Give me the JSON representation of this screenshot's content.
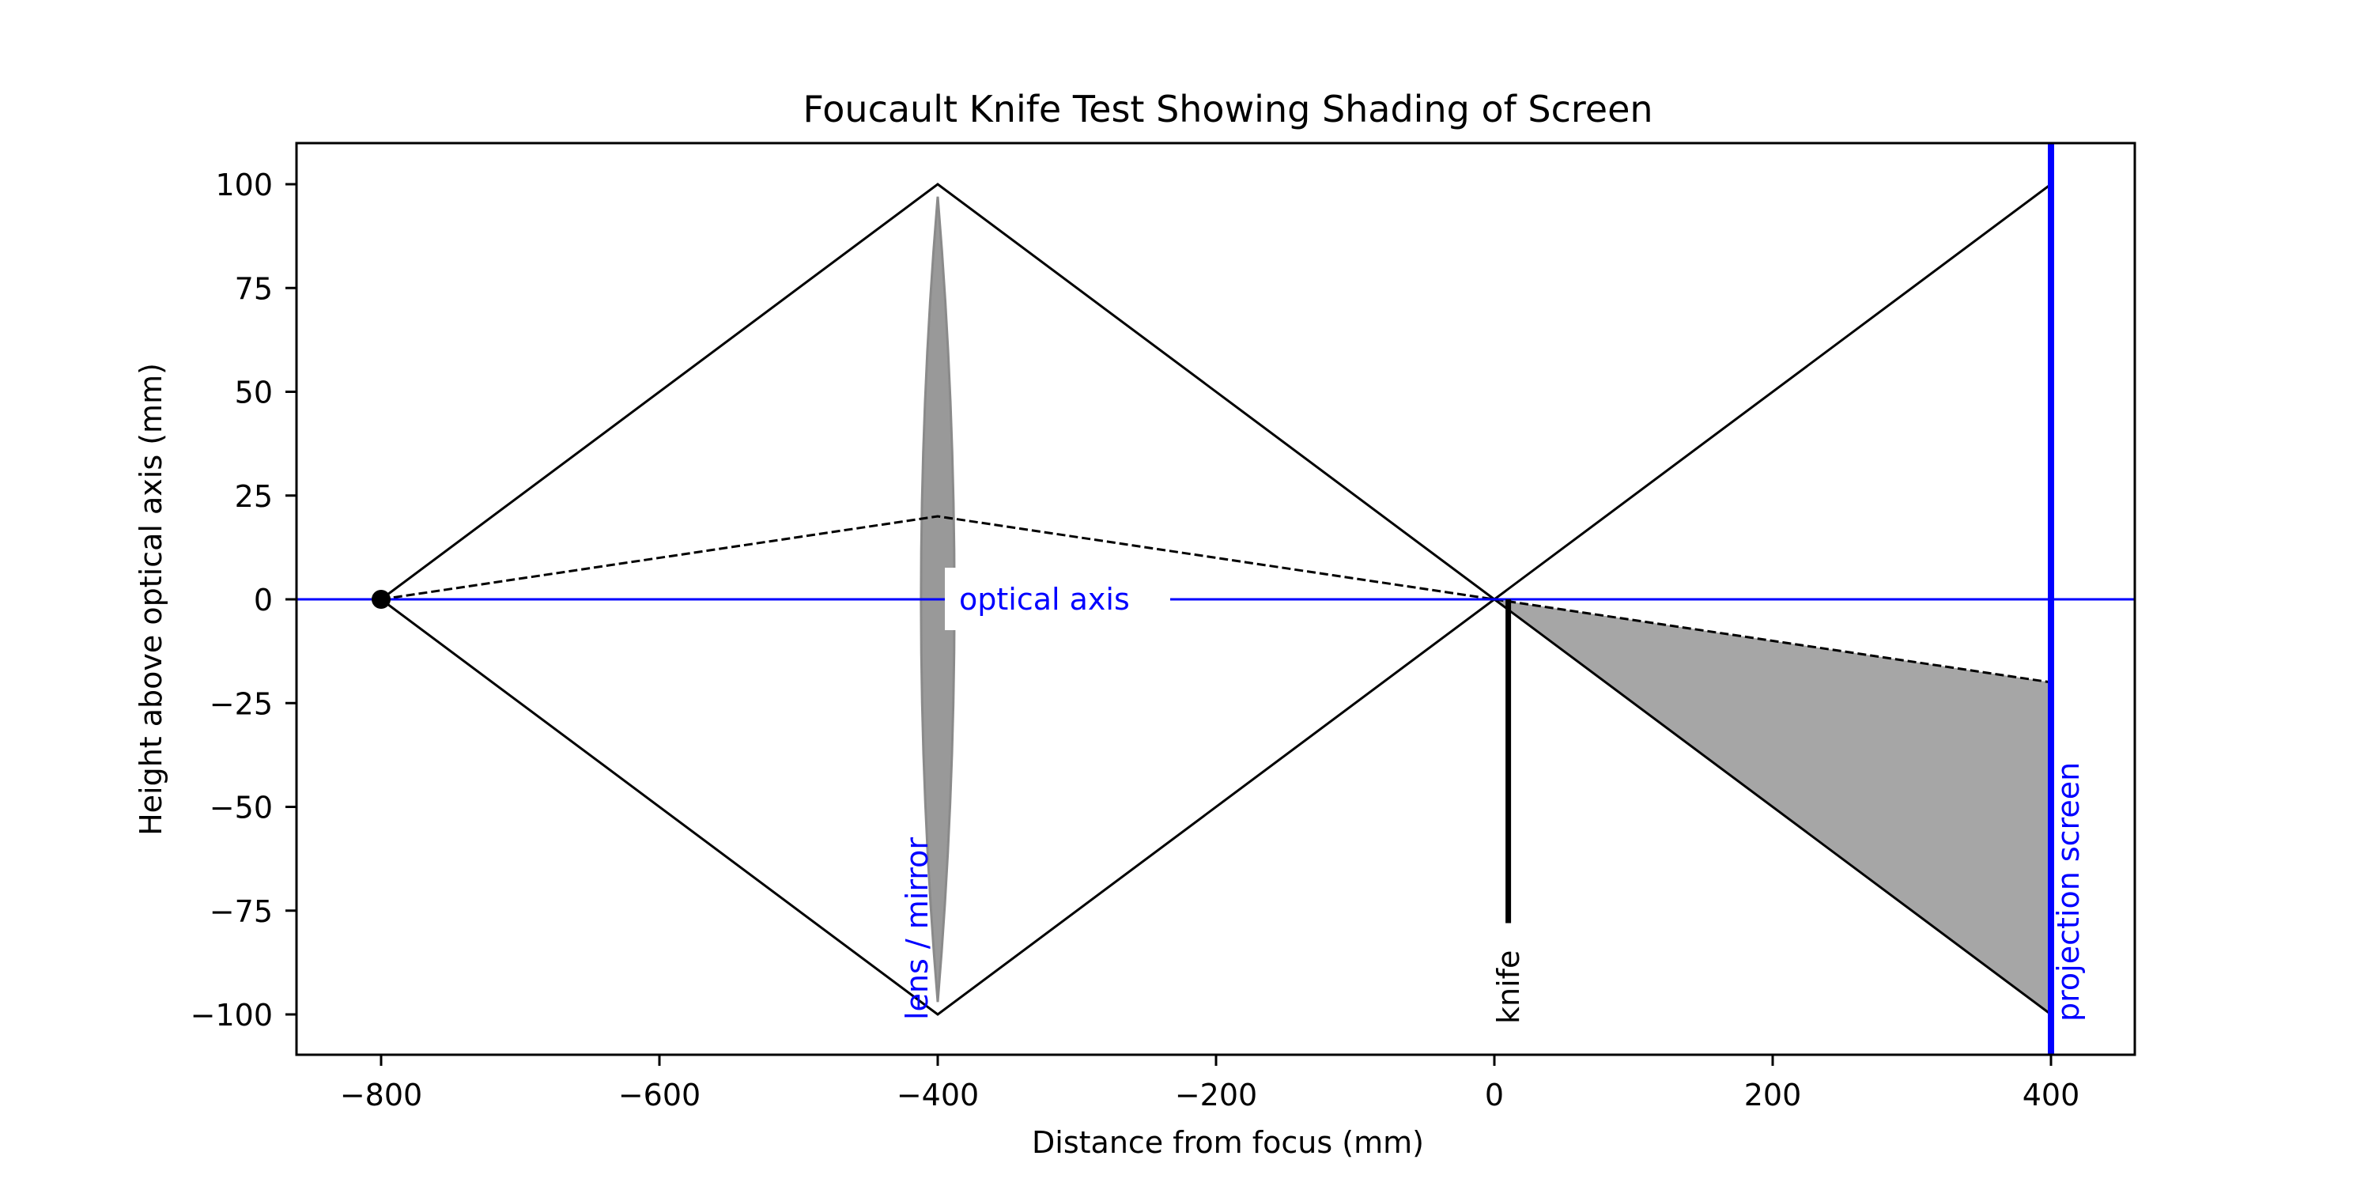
{
  "chart_data": {
    "type": "line",
    "title": "Foucault Knife Test Showing Shading of Screen",
    "xlabel": "Distance from focus (mm)",
    "ylabel": "Height above optical axis (mm)",
    "xlim": [
      -860,
      460
    ],
    "ylim": [
      -110,
      110
    ],
    "grid": false,
    "legend": null,
    "xticks": [
      -800,
      -600,
      -400,
      -200,
      0,
      200,
      400
    ],
    "xtick_labels": [
      "−800",
      "−600",
      "−400",
      "−200",
      "0",
      "200",
      "400"
    ],
    "yticks": [
      100,
      75,
      50,
      25,
      0,
      -25,
      -50,
      -75,
      -100
    ],
    "ytick_labels": [
      "100",
      "75",
      "50",
      "25",
      "0",
      "−25",
      "−50",
      "−75",
      "−100"
    ],
    "series": [
      {
        "name": "upper marginal ray",
        "style": "solid",
        "color": "#000000",
        "x": [
          -800,
          -400,
          0,
          400
        ],
        "y": [
          0,
          100,
          0,
          100
        ]
      },
      {
        "name": "lower marginal ray",
        "style": "solid",
        "color": "#000000",
        "x": [
          -800,
          -400,
          0,
          400
        ],
        "y": [
          0,
          -100,
          0,
          -100
        ]
      },
      {
        "name": "intermediate ray",
        "style": "dashed",
        "color": "#000000",
        "x": [
          -800,
          -400,
          0,
          400
        ],
        "y": [
          0,
          20,
          0,
          -20
        ]
      },
      {
        "name": "optical axis",
        "style": "solid",
        "color": "#0000ff",
        "x": [
          -860,
          460
        ],
        "y": [
          0,
          0
        ]
      }
    ],
    "elements": {
      "point_source": {
        "x": -800,
        "y": 0,
        "color": "#000000"
      },
      "lens": {
        "x": -400,
        "half_height": 97,
        "half_width": 12,
        "color": "#999999"
      },
      "knife": {
        "x": 10,
        "y_top": 0,
        "y_bottom": -78,
        "color": "#000000"
      },
      "projection_screen": {
        "x": 400,
        "color": "#0000ff"
      },
      "shaded_region": {
        "points": [
          [
            0,
            0
          ],
          [
            400,
            -20
          ],
          [
            400,
            -100
          ]
        ],
        "color": "#a6a6a6"
      }
    },
    "annotations": [
      {
        "text": "optical axis",
        "x": -375,
        "y": 0,
        "color": "#0000ff",
        "rotation": 0,
        "background": "#ffffff"
      },
      {
        "text": "lens / mirror",
        "x": -415,
        "y": -101,
        "color": "#0000ff",
        "rotation": 90
      },
      {
        "text": "knife",
        "x": 10,
        "y": -101,
        "color": "#000000",
        "rotation": 90
      },
      {
        "text": "projection screen",
        "x": 415,
        "y": -101,
        "color": "#0000ff",
        "rotation": 90
      }
    ]
  },
  "labels": {
    "title": "Foucault Knife Test Showing Shading of Screen",
    "xlabel": "Distance from focus (mm)",
    "ylabel": "Height above optical axis (mm)",
    "optical_axis": "optical axis",
    "lens_mirror": "lens / mirror",
    "knife": "knife",
    "projection_screen": "projection screen"
  },
  "colors": {
    "axis_blue": "#0000ff",
    "lens_gray": "#999999",
    "shade_gray": "#a6a6a6",
    "ink": "#000000"
  }
}
